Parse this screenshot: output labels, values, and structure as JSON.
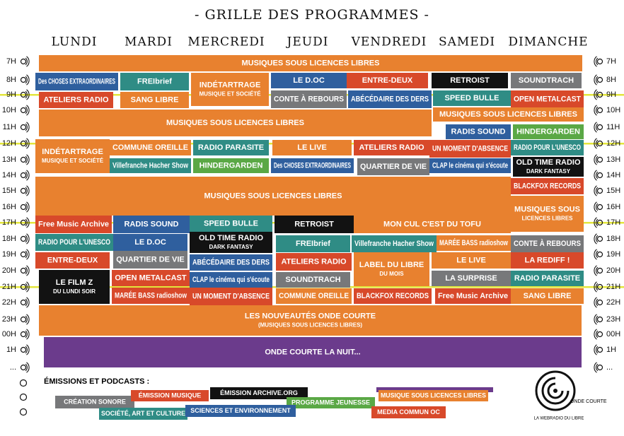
{
  "header": {
    "title": "- GRILLE DES PROGRAMMES -"
  },
  "days": [
    "LUNDI",
    "MARDI",
    "MERCREDI",
    "JEUDI",
    "VENDREDI",
    "SAMEDI",
    "DIMANCHE"
  ],
  "hours": [
    "7H",
    "8H",
    "9H",
    "10H",
    "11H",
    "12H",
    "13H",
    "14H",
    "15H",
    "16H",
    "17H",
    "18H",
    "19H",
    "20H",
    "21H",
    "22H",
    "23H",
    "00H",
    "1H",
    "..."
  ],
  "blocks": [
    {
      "label": "MUSIQUES SOUS LICENCES LIBRES"
    },
    {
      "label": "Des CHOSES EXTRAORDINAIRES"
    },
    {
      "label": "FREIbrief"
    },
    {
      "label": "INDÉTARTRAGE",
      "sub": "MUSIQUE ET SOCIÉTÉ"
    },
    {
      "label": "LE D.OC"
    },
    {
      "label": "ENTRE-DEUX"
    },
    {
      "label": "RETROIST"
    },
    {
      "label": "SOUNDTRACH"
    },
    {
      "label": "ATELIERS RADIO"
    },
    {
      "label": "SANG LIBRE"
    },
    {
      "label": "CONTE À REBOURS"
    },
    {
      "label": "ABÉCÉDAIRE DES DERS"
    },
    {
      "label": "SPEED BULLE"
    },
    {
      "label": "OPEN METALCAST"
    },
    {
      "label": "MUSIQUES SOUS LICENCES LIBRES"
    },
    {
      "label": "MUSIQUES SOUS LICENCES LIBRES"
    },
    {
      "label": "RADIS SOUND"
    },
    {
      "label": "HINDERGARDEN"
    },
    {
      "label": "INDÉTARTRAGE",
      "sub": "MUSIQUE ET SOCIÉTÉ"
    },
    {
      "label": "COMMUNE OREILLE"
    },
    {
      "label": "RADIO PARASITE"
    },
    {
      "label": "LE LIVE"
    },
    {
      "label": "ATELIERS RADIO"
    },
    {
      "label": "UN MOMENT D'ABSENCE"
    },
    {
      "label": "RADIO POUR L'UNESCO"
    },
    {
      "label": "Villefranche Hacher Show"
    },
    {
      "label": "HINDERGARDEN"
    },
    {
      "label": "Des CHOSES EXTRAORDINAIRES"
    },
    {
      "label": "QUARTIER DE VIE"
    },
    {
      "label": "CLAP le cinéma qui s'écoute"
    },
    {
      "label": "OLD TIME RADIO",
      "sub": "DARK FANTASY"
    },
    {
      "label": "MUSIQUES SOUS LICENCES LIBRES"
    },
    {
      "label": "BLACKFOX RECORDS"
    },
    {
      "label": "MUSIQUES SOUS",
      "sub": "LICENCES LIBRES"
    },
    {
      "label": "Free Music Archive"
    },
    {
      "label": "RADIS SOUND"
    },
    {
      "label": "SPEED BULLE"
    },
    {
      "label": "RETROIST"
    },
    {
      "label": "MON CUL C'EST DU TOFU"
    },
    {
      "label": "RADIO POUR L'UNESCO"
    },
    {
      "label": "LE D.OC"
    },
    {
      "label": "OLD TIME RADIO",
      "sub": "DARK FANTASY"
    },
    {
      "label": "FREIbrief"
    },
    {
      "label": "Villefranche Hacher Show"
    },
    {
      "label": "MARÉE BASS radioshow"
    },
    {
      "label": "CONTE À REBOURS"
    },
    {
      "label": "ENTRE-DEUX"
    },
    {
      "label": "QUARTIER DE VIE"
    },
    {
      "label": "ABÉCÉDAIRE DES DERS"
    },
    {
      "label": "ATELIERS RADIO"
    },
    {
      "label": "LABEL DU LIBRE",
      "sub": "DU MOIS"
    },
    {
      "label": "LE LIVE"
    },
    {
      "label": "LA REDIFF !"
    },
    {
      "label": "LE FILM Z",
      "sub": "DU LUNDI SOIR"
    },
    {
      "label": "OPEN METALCAST"
    },
    {
      "label": "CLAP le cinéma qui s'écoute"
    },
    {
      "label": "SOUNDTRACH"
    },
    {
      "label": "LA SURPRISE"
    },
    {
      "label": "RADIO PARASITE"
    },
    {
      "label": "MARÉE BASS radioshow"
    },
    {
      "label": "UN MOMENT D'ABSENCE"
    },
    {
      "label": "COMMUNE OREILLE"
    },
    {
      "label": "BLACKFOX RECORDS"
    },
    {
      "label": "Free Music Archive"
    },
    {
      "label": "SANG LIBRE"
    },
    {
      "label": "LES NOUVEAUTÉS ONDE COURTE",
      "sub": "(MUSIQUES SOUS LICENCES LIBRES)"
    },
    {
      "label": "ONDE COURTE LA NUIT..."
    }
  ],
  "legend": {
    "title": "ÉMISSIONS ET PODCASTS :",
    "items": [
      "CRÉATION SONORE",
      "ÉMISSION MUSIQUE",
      "ÉMISSION ARCHIVE.ORG",
      "MUSIQUE SOUS LICENCES LIBRES",
      "PROGRAMME JEUNESSE",
      "SOCIÉTÉ, ART ET CULTURE",
      "SCIENCES ET ENVIRONNEMENT",
      "MEDIA COMMUN OC"
    ]
  },
  "logo": {
    "name": "ONDE COURTE",
    "tagline": "LA WEBRADIO DU LIBRE"
  }
}
